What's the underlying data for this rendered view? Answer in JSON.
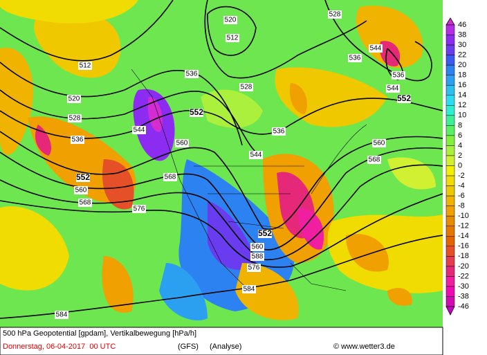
{
  "map": {
    "contour_labels": [
      512,
      520,
      528,
      536,
      552,
      560,
      568,
      576,
      584,
      544,
      552,
      560,
      568,
      536,
      528,
      520,
      512,
      544,
      536,
      536,
      528,
      544,
      536,
      544,
      552,
      560,
      568,
      552,
      560,
      588,
      576,
      584
    ]
  },
  "legend": {
    "levels": [
      46,
      38,
      30,
      22,
      20,
      18,
      16,
      14,
      12,
      10,
      8,
      6,
      4,
      2,
      0,
      -2,
      -4,
      -6,
      -8,
      -10,
      -12,
      -14,
      -16,
      -18,
      -20,
      -22,
      -30,
      -38,
      -46
    ],
    "colors": [
      "#d22cd2",
      "#b42ce6",
      "#8c2cf0",
      "#6a3cf0",
      "#3c5af0",
      "#2c82f0",
      "#2ca0f0",
      "#2cc0f0",
      "#2cdcf0",
      "#2cf0d2",
      "#3cf096",
      "#5af064",
      "#82f03c",
      "#aaf03c",
      "#d2f032",
      "#f0f000",
      "#f0dc00",
      "#f0c800",
      "#f0b400",
      "#f0a000",
      "#e68c00",
      "#e67800",
      "#e66400",
      "#e65028",
      "#e63c50",
      "#e62878",
      "#f01ea0",
      "#f00ab4",
      "#d20ab4",
      "#c800c8"
    ]
  },
  "footer": {
    "title": "500 hPa Geopotential [gpdam], Vertikalbewegung [hPa/h]",
    "date": "Donnerstag, 06-04-2017  00 UTC",
    "model": "(GFS)",
    "run": "(Analyse)",
    "credit": "© www.wetter3.de"
  }
}
